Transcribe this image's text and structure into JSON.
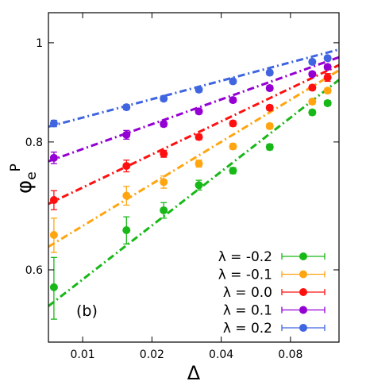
{
  "chart_data": {
    "type": "scatter",
    "title": "",
    "xlabel": "Δ",
    "ylabel_main": "φ",
    "ylabel_sub": "e",
    "ylabel_sup": "P",
    "x_scale": "log",
    "y_scale": "log",
    "xlim": [
      0.0071,
      0.13
    ],
    "ylim": [
      0.51,
      1.07
    ],
    "x_ticks": [
      0.01,
      0.02,
      0.04,
      0.08
    ],
    "x_tick_labels": [
      "0.01",
      "0.02",
      "0.04",
      "0.08"
    ],
    "y_ticks": [
      0.6,
      0.8,
      1.0
    ],
    "y_tick_labels": [
      "0.6",
      "0.8",
      "1"
    ],
    "panel_label": "(b)",
    "grid": false,
    "legend_position": "bottom-right",
    "x": [
      0.0075,
      0.0155,
      0.0225,
      0.032,
      0.045,
      0.065,
      0.0995,
      0.116
    ],
    "series": [
      {
        "name": "λ = -0.2",
        "color": "#17b817",
        "y": [
          0.577,
          0.656,
          0.686,
          0.726,
          0.75,
          0.791,
          0.855,
          0.873
        ],
        "yerr": [
          0.04,
          0.02,
          0.012,
          0.008,
          0.005,
          0.005,
          0.005,
          0.005
        ],
        "fit": [
          0.553,
          0.92
        ]
      },
      {
        "name": "λ = -0.1",
        "color": "#ffa510",
        "y": [
          0.649,
          0.709,
          0.731,
          0.762,
          0.792,
          0.829,
          0.876,
          0.898
        ],
        "yerr": [
          0.025,
          0.015,
          0.01,
          0.006,
          0.005,
          0.005,
          0.005,
          0.005
        ],
        "fit": [
          0.632,
          0.94
        ]
      },
      {
        "name": "λ = 0.0",
        "color": "#ff1010",
        "y": [
          0.702,
          0.758,
          0.779,
          0.809,
          0.834,
          0.864,
          0.904,
          0.925
        ],
        "yerr": [
          0.015,
          0.01,
          0.006,
          0.005,
          0.005,
          0.005,
          0.005,
          0.008
        ],
        "fit": [
          0.696,
          0.951
        ]
      },
      {
        "name": "λ = 0.1",
        "color": "#9400d3",
        "y": [
          0.772,
          0.813,
          0.833,
          0.857,
          0.879,
          0.903,
          0.932,
          0.947
        ],
        "yerr": [
          0.01,
          0.008,
          0.005,
          0.005,
          0.005,
          0.005,
          0.005,
          0.005
        ],
        "fit": [
          0.766,
          0.968
        ]
      },
      {
        "name": "λ = 0.2",
        "color": "#3f65e0",
        "y": [
          0.834,
          0.865,
          0.882,
          0.9,
          0.917,
          0.935,
          0.958,
          0.966
        ],
        "yerr": [
          0.006,
          0.005,
          0.005,
          0.005,
          0.005,
          0.005,
          0.005,
          0.005
        ],
        "fit": [
          0.828,
          0.985
        ]
      }
    ]
  }
}
